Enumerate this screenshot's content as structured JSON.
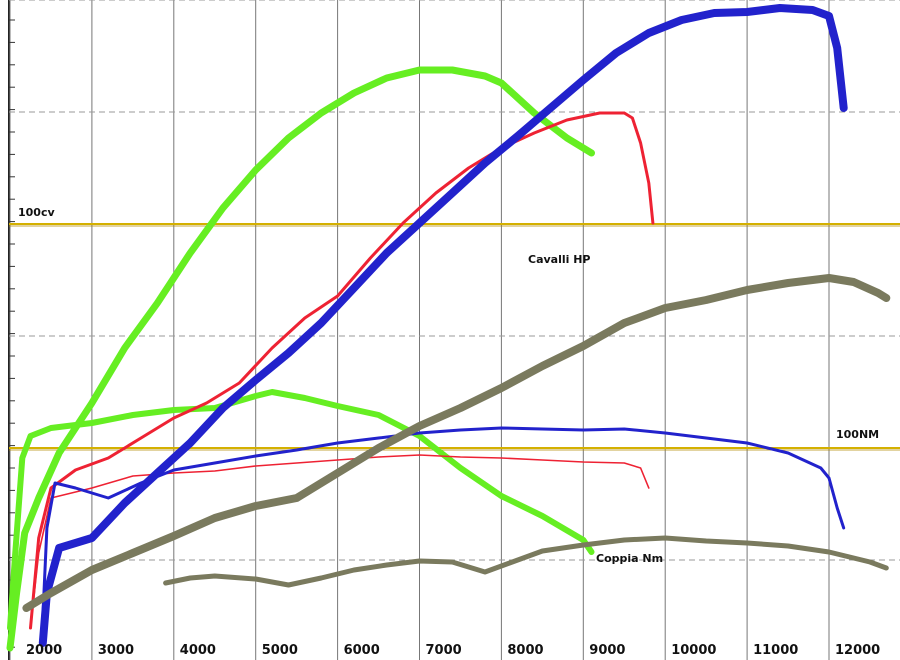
{
  "chart_data": {
    "type": "line",
    "x_ticks": [
      "2000",
      "3000",
      "4000",
      "5000",
      "6000",
      "7000",
      "8000",
      "9000",
      "10000",
      "11000",
      "12000"
    ],
    "reference_lines": [
      {
        "label": "100cv",
        "color": "#d4b000"
      },
      {
        "label": "100NM",
        "color": "#d4b000"
      }
    ],
    "annotations": [
      "Cavalli HP",
      "Coppia Nm"
    ],
    "series": [
      {
        "color": "#66ee22",
        "kind": "power",
        "points": [
          [
            2000,
            0
          ],
          [
            2080,
            55
          ],
          [
            2180,
            115
          ],
          [
            2350,
            150
          ],
          [
            2600,
            195
          ],
          [
            3000,
            245
          ],
          [
            3400,
            300
          ],
          [
            3800,
            345
          ],
          [
            4200,
            395
          ],
          [
            4600,
            440
          ],
          [
            5000,
            478
          ],
          [
            5400,
            510
          ],
          [
            5800,
            535
          ],
          [
            6200,
            555
          ],
          [
            6600,
            570
          ],
          [
            7000,
            578
          ],
          [
            7400,
            578
          ],
          [
            7800,
            572
          ],
          [
            8000,
            565
          ],
          [
            8400,
            535
          ],
          [
            8800,
            510
          ],
          [
            9100,
            495
          ]
        ]
      },
      {
        "color": "#66ee22",
        "kind": "torque",
        "points": [
          [
            2000,
            20
          ],
          [
            2060,
            90
          ],
          [
            2150,
            190
          ],
          [
            2250,
            212
          ],
          [
            2500,
            220
          ],
          [
            3000,
            225
          ],
          [
            3500,
            233
          ],
          [
            4000,
            238
          ],
          [
            4500,
            240
          ],
          [
            5000,
            252
          ],
          [
            5200,
            256
          ],
          [
            5600,
            250
          ],
          [
            6000,
            242
          ],
          [
            6500,
            233
          ],
          [
            7000,
            212
          ],
          [
            7500,
            180
          ],
          [
            8000,
            152
          ],
          [
            8500,
            132
          ],
          [
            9000,
            108
          ],
          [
            9100,
            96
          ]
        ]
      },
      {
        "color": "#ee2233",
        "kind": "power",
        "points": [
          [
            2250,
            20
          ],
          [
            2350,
            110
          ],
          [
            2500,
            160
          ],
          [
            2800,
            178
          ],
          [
            3200,
            190
          ],
          [
            3600,
            210
          ],
          [
            4000,
            230
          ],
          [
            4400,
            245
          ],
          [
            4800,
            265
          ],
          [
            5200,
            300
          ],
          [
            5600,
            330
          ],
          [
            6000,
            352
          ],
          [
            6400,
            390
          ],
          [
            6800,
            425
          ],
          [
            7200,
            455
          ],
          [
            7600,
            480
          ],
          [
            8000,
            500
          ],
          [
            8400,
            515
          ],
          [
            8800,
            528
          ],
          [
            9200,
            535
          ],
          [
            9500,
            535
          ],
          [
            9600,
            530
          ],
          [
            9700,
            505
          ],
          [
            9800,
            465
          ],
          [
            9850,
            425
          ]
        ]
      },
      {
        "color": "#ee2233",
        "kind": "torque",
        "points": [
          [
            2250,
            20
          ],
          [
            2350,
            95
          ],
          [
            2500,
            150
          ],
          [
            3000,
            160
          ],
          [
            3500,
            172
          ],
          [
            4000,
            175
          ],
          [
            4500,
            177
          ],
          [
            5000,
            182
          ],
          [
            5500,
            185
          ],
          [
            6000,
            188
          ],
          [
            6500,
            191
          ],
          [
            7000,
            193
          ],
          [
            7500,
            191
          ],
          [
            8000,
            190
          ],
          [
            8500,
            188
          ],
          [
            9000,
            186
          ],
          [
            9500,
            185
          ],
          [
            9700,
            180
          ],
          [
            9800,
            160
          ]
        ]
      },
      {
        "color": "#2222cc",
        "kind": "power",
        "points": [
          [
            2400,
            5
          ],
          [
            2450,
            55
          ],
          [
            2600,
            100
          ],
          [
            3000,
            110
          ],
          [
            3400,
            145
          ],
          [
            3800,
            175
          ],
          [
            4200,
            205
          ],
          [
            4600,
            240
          ],
          [
            5000,
            268
          ],
          [
            5400,
            295
          ],
          [
            5800,
            325
          ],
          [
            6200,
            360
          ],
          [
            6600,
            395
          ],
          [
            7000,
            425
          ],
          [
            7400,
            455
          ],
          [
            7800,
            485
          ],
          [
            8200,
            512
          ],
          [
            8600,
            540
          ],
          [
            9000,
            568
          ],
          [
            9400,
            595
          ],
          [
            9800,
            615
          ],
          [
            10200,
            628
          ],
          [
            10600,
            635
          ],
          [
            11000,
            636
          ],
          [
            11400,
            640
          ],
          [
            11800,
            638
          ],
          [
            12000,
            632
          ],
          [
            12100,
            600
          ],
          [
            12180,
            540
          ]
        ]
      },
      {
        "color": "#2222cc",
        "kind": "torque",
        "points": [
          [
            2400,
            30
          ],
          [
            2450,
            120
          ],
          [
            2550,
            165
          ],
          [
            2800,
            160
          ],
          [
            3200,
            150
          ],
          [
            3600,
            165
          ],
          [
            4000,
            178
          ],
          [
            4500,
            185
          ],
          [
            5000,
            192
          ],
          [
            5500,
            198
          ],
          [
            6000,
            205
          ],
          [
            6500,
            210
          ],
          [
            7000,
            215
          ],
          [
            7500,
            218
          ],
          [
            8000,
            220
          ],
          [
            8500,
            219
          ],
          [
            9000,
            218
          ],
          [
            9500,
            219
          ],
          [
            10000,
            215
          ],
          [
            10500,
            210
          ],
          [
            11000,
            205
          ],
          [
            11500,
            195
          ],
          [
            11900,
            180
          ],
          [
            12000,
            170
          ],
          [
            12100,
            140
          ],
          [
            12180,
            120
          ]
        ]
      },
      {
        "color": "#7a7a5e",
        "kind": "power",
        "points": [
          [
            2200,
            40
          ],
          [
            2500,
            55
          ],
          [
            3000,
            78
          ],
          [
            3500,
            95
          ],
          [
            4000,
            112
          ],
          [
            4500,
            130
          ],
          [
            5000,
            142
          ],
          [
            5500,
            150
          ],
          [
            6000,
            175
          ],
          [
            6500,
            200
          ],
          [
            7000,
            222
          ],
          [
            7500,
            240
          ],
          [
            8000,
            260
          ],
          [
            8500,
            282
          ],
          [
            9000,
            302
          ],
          [
            9500,
            325
          ],
          [
            10000,
            340
          ],
          [
            10500,
            348
          ],
          [
            11000,
            358
          ],
          [
            11500,
            365
          ],
          [
            12000,
            370
          ],
          [
            12300,
            366
          ],
          [
            12600,
            355
          ],
          [
            12700,
            350
          ]
        ]
      },
      {
        "color": "#7a7a5e",
        "kind": "torque",
        "points": [
          [
            3900,
            65
          ],
          [
            4200,
            70
          ],
          [
            4500,
            72
          ],
          [
            5000,
            69
          ],
          [
            5400,
            63
          ],
          [
            5800,
            70
          ],
          [
            6200,
            78
          ],
          [
            6600,
            83
          ],
          [
            7000,
            87
          ],
          [
            7400,
            86
          ],
          [
            7800,
            76
          ],
          [
            8100,
            85
          ],
          [
            8500,
            97
          ],
          [
            9000,
            103
          ],
          [
            9500,
            108
          ],
          [
            10000,
            110
          ],
          [
            10500,
            107
          ],
          [
            11000,
            105
          ],
          [
            11500,
            102
          ],
          [
            12000,
            96
          ],
          [
            12500,
            86
          ],
          [
            12700,
            80
          ]
        ]
      }
    ]
  }
}
